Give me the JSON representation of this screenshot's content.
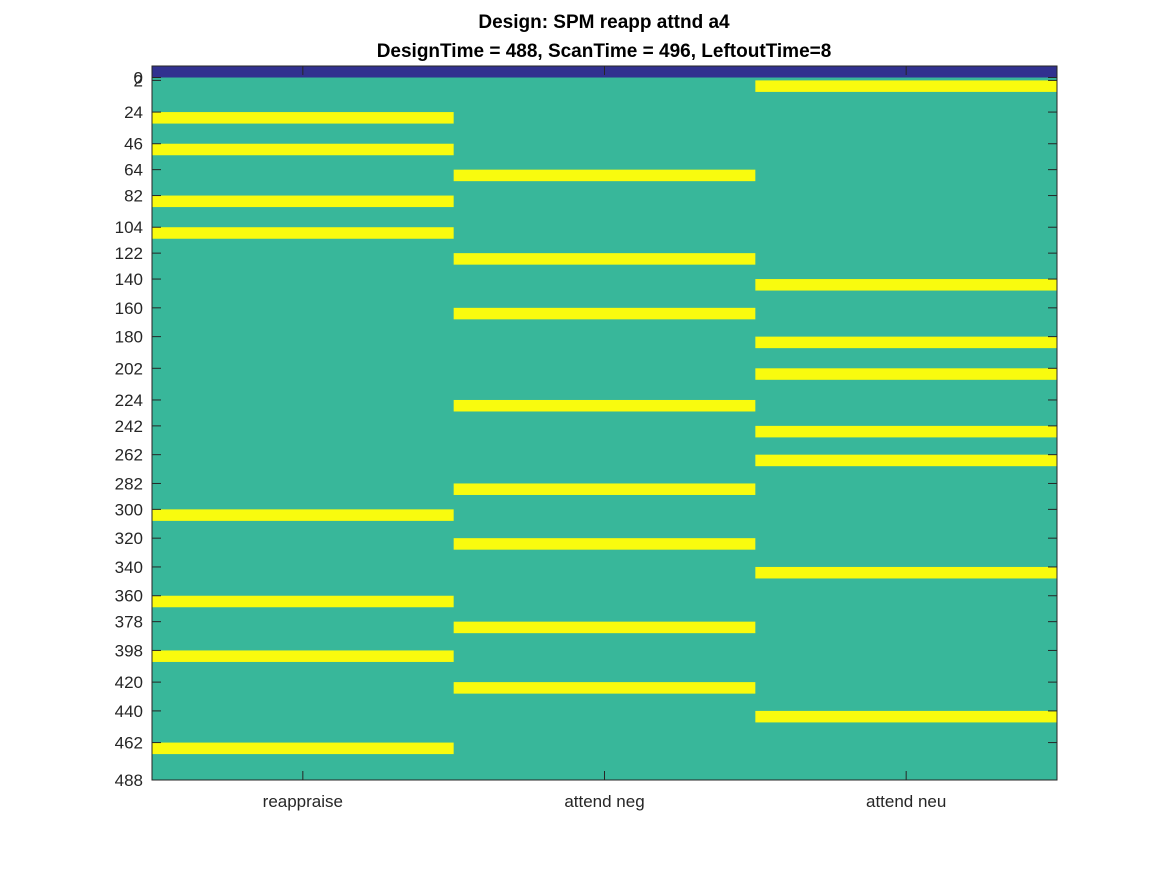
{
  "chart_data": {
    "type": "heatmap",
    "title": "Design: SPM reapp attnd a4",
    "subtitle": "DesignTime = 488, ScanTime = 496, LeftoutTime=8",
    "categories": [
      "reappraise",
      "attend neg",
      "attend neu"
    ],
    "y_ticks": [
      0,
      2,
      24,
      46,
      64,
      82,
      104,
      122,
      140,
      160,
      180,
      202,
      224,
      242,
      262,
      282,
      300,
      320,
      340,
      360,
      378,
      398,
      420,
      440,
      462,
      488
    ],
    "ylim": [
      -8,
      488
    ],
    "y_reversed": true,
    "event_duration": 8,
    "events": {
      "reappraise": [
        24,
        46,
        82,
        104,
        300,
        360,
        398,
        462
      ],
      "attend neg": [
        64,
        122,
        160,
        224,
        282,
        320,
        378,
        420
      ],
      "attend neu": [
        2,
        140,
        180,
        202,
        242,
        262,
        340,
        440
      ]
    },
    "leftout_range": [
      -8,
      0
    ],
    "colors": {
      "background": "#38b79a",
      "event": "#f9fb0e",
      "leftout": "#31318f",
      "axis": "#262626"
    }
  }
}
